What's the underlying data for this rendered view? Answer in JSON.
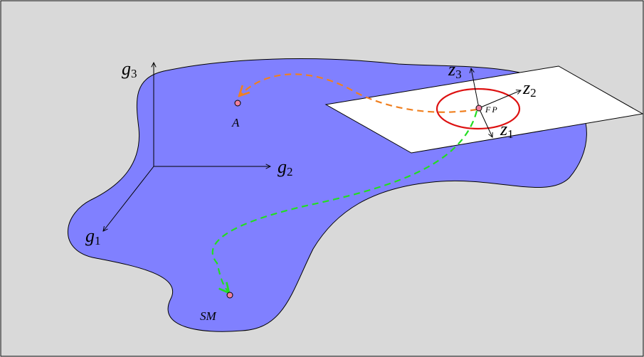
{
  "axes": [
    {
      "symbol": "g",
      "index": "3"
    },
    {
      "symbol": "g",
      "index": "2"
    },
    {
      "symbol": "g",
      "index": "1"
    }
  ],
  "tangent_axes": [
    {
      "symbol": "z",
      "index": "3"
    },
    {
      "symbol": "z",
      "index": "2"
    },
    {
      "symbol": "z",
      "index": "1"
    }
  ],
  "points": [
    {
      "label": "FP"
    },
    {
      "label": "A"
    },
    {
      "label": "SM"
    }
  ]
}
